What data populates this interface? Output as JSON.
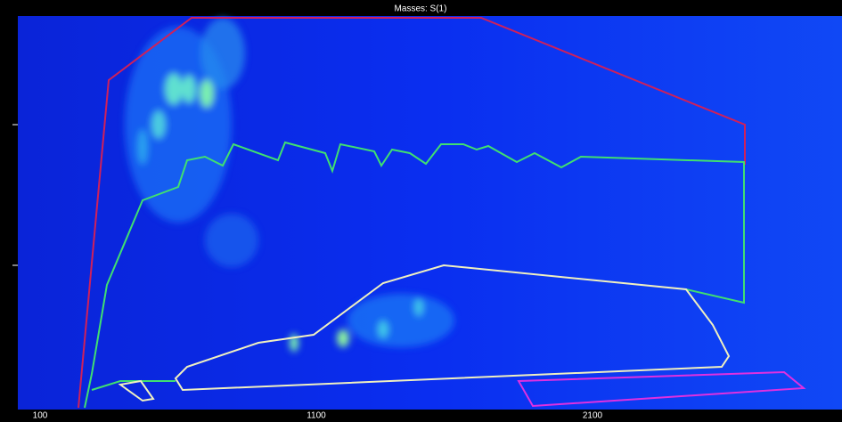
{
  "plot": {
    "title": "Masses: S(1)",
    "x_tick_labels": [
      "100",
      "1100",
      "2100"
    ]
  }
}
